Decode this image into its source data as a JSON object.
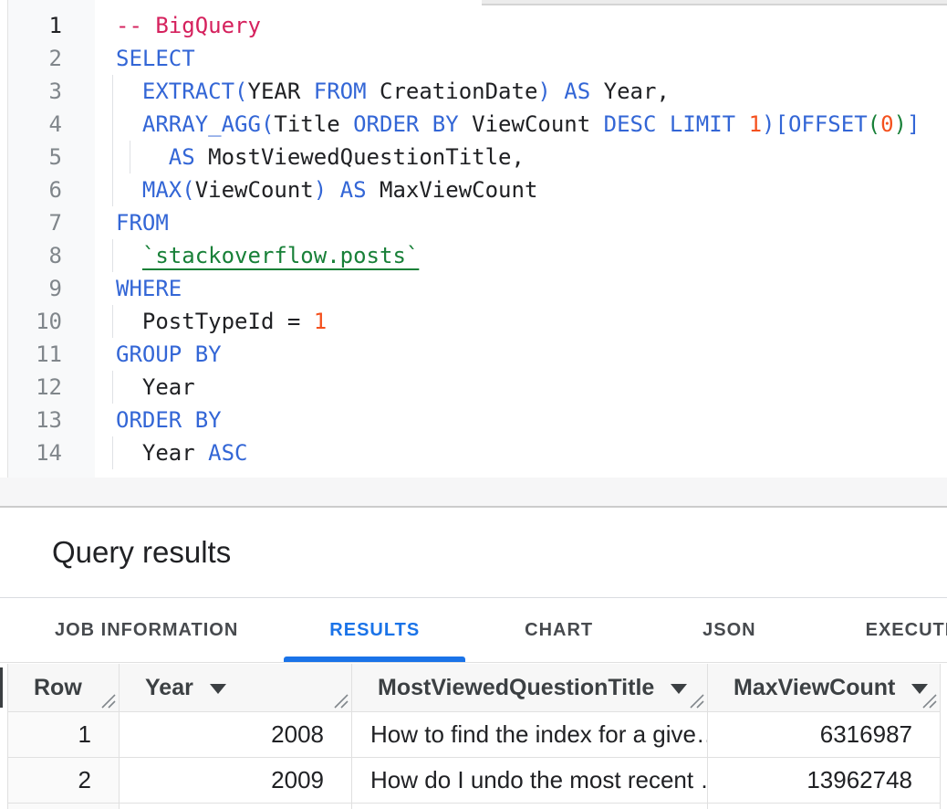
{
  "colors": {
    "kw": "#3366d6",
    "comment": "#d5215d",
    "num": "#f4511e",
    "green": "#188038",
    "accent": "#1a73e8",
    "border": "#e0e0e0"
  },
  "editor": {
    "lines": [
      {
        "n": "1",
        "active": true,
        "indent": 0,
        "segs": [
          {
            "t": "-- BigQuery",
            "c": "comment"
          }
        ]
      },
      {
        "n": "2",
        "indent": 0,
        "segs": [
          {
            "t": "SELECT",
            "c": "kw"
          }
        ]
      },
      {
        "n": "3",
        "indent": 1,
        "segs": [
          {
            "t": "  EXTRACT(",
            "c": "kw"
          },
          {
            "t": "YEAR ",
            "c": "id"
          },
          {
            "t": "FROM ",
            "c": "kw"
          },
          {
            "t": "CreationDate",
            "c": "id"
          },
          {
            "t": ") AS ",
            "c": "kw"
          },
          {
            "t": "Year,",
            "c": "id"
          }
        ]
      },
      {
        "n": "4",
        "indent": 1,
        "segs": [
          {
            "t": "  ARRAY_AGG(",
            "c": "kw"
          },
          {
            "t": "Title ",
            "c": "id"
          },
          {
            "t": "ORDER BY ",
            "c": "kw"
          },
          {
            "t": "ViewCount ",
            "c": "id"
          },
          {
            "t": "DESC LIMIT ",
            "c": "kw"
          },
          {
            "t": "1",
            "c": "num"
          },
          {
            "t": ")[OFFSET",
            "c": "kw"
          },
          {
            "t": "(",
            "c": "green"
          },
          {
            "t": "0",
            "c": "num"
          },
          {
            "t": ")",
            "c": "green"
          },
          {
            "t": "]",
            "c": "kw"
          }
        ]
      },
      {
        "n": "5",
        "indent": 2,
        "segs": [
          {
            "t": "    AS ",
            "c": "kw"
          },
          {
            "t": "MostViewedQuestionTitle,",
            "c": "id"
          }
        ]
      },
      {
        "n": "6",
        "indent": 1,
        "segs": [
          {
            "t": "  MAX(",
            "c": "kw"
          },
          {
            "t": "ViewCount",
            "c": "id"
          },
          {
            "t": ") AS ",
            "c": "kw"
          },
          {
            "t": "MaxViewCount",
            "c": "id"
          }
        ]
      },
      {
        "n": "7",
        "indent": 0,
        "segs": [
          {
            "t": "FROM",
            "c": "kw"
          }
        ]
      },
      {
        "n": "8",
        "indent": 1,
        "segs": [
          {
            "t": "  ",
            "c": "id"
          },
          {
            "t": "`stackoverflow.posts`",
            "c": "table"
          }
        ]
      },
      {
        "n": "9",
        "indent": 0,
        "segs": [
          {
            "t": "WHERE",
            "c": "kw"
          }
        ]
      },
      {
        "n": "10",
        "indent": 1,
        "segs": [
          {
            "t": "  PostTypeId = ",
            "c": "id"
          },
          {
            "t": "1",
            "c": "num"
          }
        ]
      },
      {
        "n": "11",
        "indent": 0,
        "segs": [
          {
            "t": "GROUP BY",
            "c": "kw"
          }
        ]
      },
      {
        "n": "12",
        "indent": 1,
        "segs": [
          {
            "t": "  Year",
            "c": "id"
          }
        ]
      },
      {
        "n": "13",
        "indent": 0,
        "segs": [
          {
            "t": "ORDER BY",
            "c": "kw"
          }
        ]
      },
      {
        "n": "14",
        "indent": 1,
        "segs": [
          {
            "t": "  Year ",
            "c": "id"
          },
          {
            "t": "ASC",
            "c": "kw"
          }
        ]
      }
    ]
  },
  "results": {
    "title": "Query results",
    "tabs": [
      {
        "label": "JOB INFORMATION",
        "active": false
      },
      {
        "label": "RESULTS",
        "active": true
      },
      {
        "label": "CHART",
        "active": false
      },
      {
        "label": "JSON",
        "active": false
      },
      {
        "label": "EXECUTION DETAILS",
        "active": false
      }
    ],
    "table": {
      "columns": [
        {
          "label": "Row",
          "sortable": false
        },
        {
          "label": "Year",
          "sortable": true
        },
        {
          "label": "MostViewedQuestionTitle",
          "sortable": true
        },
        {
          "label": "MaxViewCount",
          "sortable": true
        }
      ],
      "rows": [
        [
          "1",
          "2008",
          "How to find the index for a give…",
          "6316987"
        ],
        [
          "2",
          "2009",
          "How do I undo the most recent …",
          "13962748"
        ]
      ]
    }
  }
}
